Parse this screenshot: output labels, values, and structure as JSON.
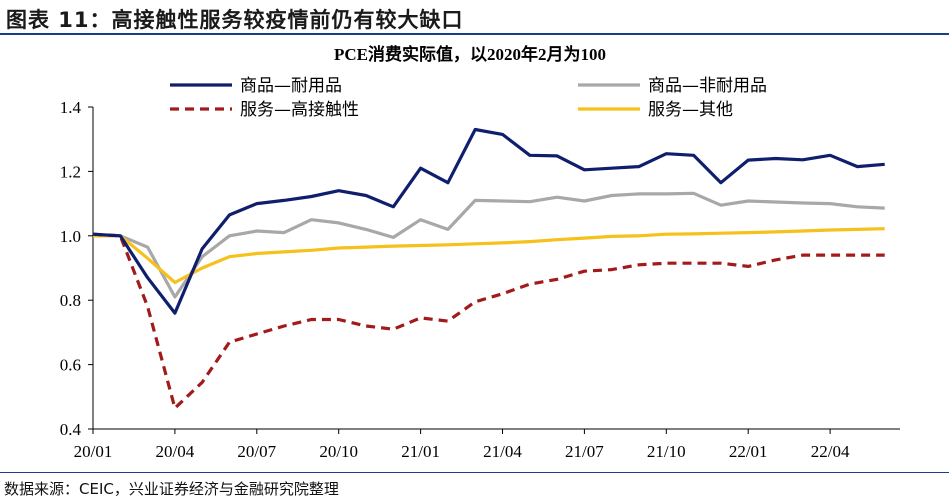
{
  "figure": {
    "title": "图表 11：高接触性服务较疫情前仍有较大缺口",
    "source": "数据来源：CEIC，兴业证券经济与金融研究院整理"
  },
  "chart_data": {
    "type": "line",
    "title": "PCE消费实际值，以2020年2月为100",
    "xlabel": "",
    "ylabel": "",
    "ylim": [
      0.4,
      1.4
    ],
    "yticks": [
      "0.4",
      "0.6",
      "0.8",
      "1.0",
      "1.2",
      "1.4"
    ],
    "xticks": [
      "20/01",
      "20/04",
      "20/07",
      "20/10",
      "21/01",
      "21/04",
      "21/07",
      "21/10",
      "22/01",
      "22/04"
    ],
    "x": [
      "20/01",
      "20/02",
      "20/03",
      "20/04",
      "20/05",
      "20/06",
      "20/07",
      "20/08",
      "20/09",
      "20/10",
      "20/11",
      "20/12",
      "21/01",
      "21/02",
      "21/03",
      "21/04",
      "21/05",
      "21/06",
      "21/07",
      "21/08",
      "21/09",
      "21/10",
      "21/11",
      "21/12",
      "22/01",
      "22/02",
      "22/03",
      "22/04",
      "22/05",
      "22/06"
    ],
    "series": [
      {
        "name": "商品—耐用品",
        "color": "#0f1f6e",
        "dash": "solid",
        "values": [
          1.005,
          1.0,
          0.87,
          0.76,
          0.96,
          1.065,
          1.1,
          1.11,
          1.122,
          1.14,
          1.125,
          1.09,
          1.21,
          1.165,
          1.33,
          1.315,
          1.25,
          1.248,
          1.205,
          1.21,
          1.215,
          1.255,
          1.25,
          1.165,
          1.235,
          1.24,
          1.236,
          1.25,
          1.215,
          1.222
        ]
      },
      {
        "name": "商品—非耐用品",
        "color": "#a8a8a8",
        "dash": "solid",
        "values": [
          1.0,
          1.0,
          0.965,
          0.81,
          0.935,
          1.0,
          1.015,
          1.01,
          1.05,
          1.04,
          1.02,
          0.995,
          1.05,
          1.02,
          1.11,
          1.108,
          1.106,
          1.12,
          1.108,
          1.125,
          1.13,
          1.13,
          1.132,
          1.095,
          1.108,
          1.105,
          1.102,
          1.1,
          1.09,
          1.086
        ]
      },
      {
        "name": "服务—高接触性",
        "color": "#a31a1a",
        "dash": "dashed",
        "values": [
          1.005,
          1.0,
          0.78,
          0.465,
          0.545,
          0.67,
          0.695,
          0.72,
          0.74,
          0.74,
          0.72,
          0.71,
          0.745,
          0.735,
          0.795,
          0.82,
          0.85,
          0.865,
          0.89,
          0.895,
          0.91,
          0.915,
          0.915,
          0.915,
          0.905,
          0.925,
          0.94,
          0.94,
          0.94,
          0.94
        ]
      },
      {
        "name": "服务—其他",
        "color": "#f5c11a",
        "dash": "solid",
        "values": [
          1.0,
          1.0,
          0.93,
          0.855,
          0.9,
          0.935,
          0.945,
          0.95,
          0.955,
          0.962,
          0.965,
          0.968,
          0.97,
          0.972,
          0.975,
          0.978,
          0.982,
          0.988,
          0.993,
          0.998,
          1.0,
          1.005,
          1.006,
          1.008,
          1.01,
          1.012,
          1.015,
          1.018,
          1.02,
          1.022
        ]
      }
    ],
    "legend": "top"
  }
}
